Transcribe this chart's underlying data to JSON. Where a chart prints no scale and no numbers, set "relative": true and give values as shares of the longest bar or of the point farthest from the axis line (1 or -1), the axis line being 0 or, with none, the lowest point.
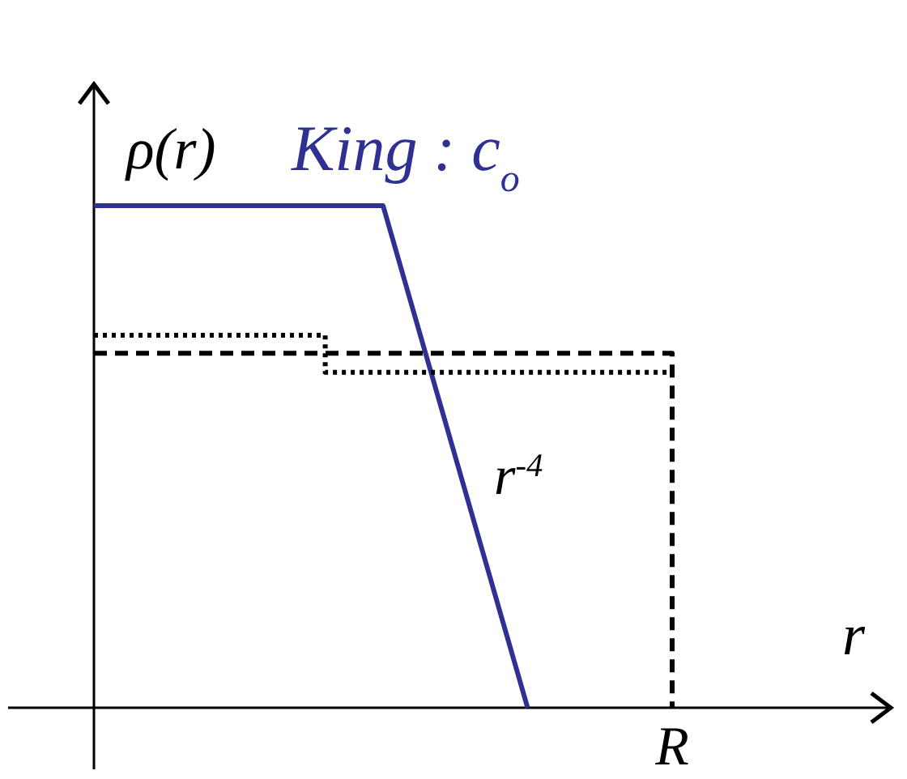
{
  "chart_data": {
    "type": "line",
    "relative": true,
    "xlabel": "r",
    "ylabel": "ρ(r)",
    "annotations": [
      "r$^{-4}$",
      "R"
    ],
    "categories": [
      null,
      null,
      null,
      null,
      null,
      null,
      null,
      null,
      null,
      null,
      null,
      null,
      null,
      null,
      null,
      null,
      null,
      null,
      null,
      null,
      null,
      null,
      null,
      null,
      null,
      null,
      null,
      null,
      null,
      null,
      null,
      null,
      null,
      null,
      null,
      null,
      null,
      null,
      null,
      null,
      null
    ],
    "series": [
      {
        "name": "King : c$_{o}$",
        "color": "#2e3192",
        "line_style": "solid",
        "values": [
          1,
          1,
          1,
          1,
          1,
          1,
          1,
          1,
          1,
          1,
          1,
          1,
          1,
          1,
          1,
          1,
          1,
          1,
          1,
          1,
          1,
          0.9,
          0.8,
          0.7,
          0.6,
          0.5,
          0.4,
          0.3,
          0.2,
          0.1,
          0,
          null,
          null,
          null,
          null,
          null,
          null,
          null,
          null,
          null,
          null
        ]
      },
      {
        "type": "step",
        "color": "#000000",
        "line_style": "dashed",
        "values": [
          0.706,
          0.706,
          0.706,
          0.706,
          0.706,
          0.706,
          0.706,
          0.706,
          0.706,
          0.706,
          0.706,
          0.706,
          0.706,
          0.706,
          0.706,
          0.706,
          0.706,
          0.706,
          0.706,
          0.706,
          0.706,
          0.706,
          0.706,
          0.706,
          0.706,
          0.706,
          0.706,
          0.706,
          0.706,
          0.706,
          0.706,
          0.706,
          0.706,
          0.706,
          0.706,
          0.706,
          0.706,
          0.706,
          0.706,
          0.706,
          0
        ]
      },
      {
        "type": "step",
        "color": "#000000",
        "line_style": "dotted",
        "values": [
          0.742,
          0.742,
          0.742,
          0.742,
          0.742,
          0.742,
          0.742,
          0.742,
          0.742,
          0.742,
          0.742,
          0.742,
          0.742,
          0.742,
          0.742,
          0.742,
          0.668,
          0.668,
          0.668,
          0.668,
          0.668,
          0.668,
          0.668,
          0.668,
          0.668,
          0.668,
          0.668,
          0.668,
          0.668,
          0.668,
          0.668,
          0.668,
          0.668,
          0.668,
          0.668,
          0.668,
          0.668,
          0.668,
          0.668,
          0.668,
          0.668
        ]
      }
    ]
  }
}
